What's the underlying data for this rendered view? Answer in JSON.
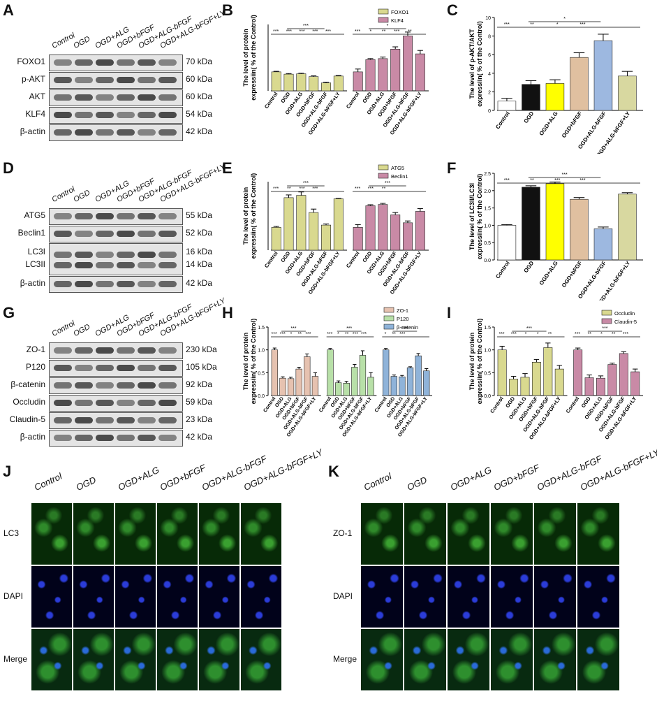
{
  "panels": {
    "A": "A",
    "B": "B",
    "C": "C",
    "D": "D",
    "E": "E",
    "F": "F",
    "G": "G",
    "H": "H",
    "I": "I",
    "J": "J",
    "K": "K"
  },
  "lanes": [
    "Control",
    "OGD",
    "OGD+ALG",
    "OGD+bFGF",
    "OGD+ALG-bFGF",
    "OGD+ALG-bFGF+LY"
  ],
  "blots": {
    "A": [
      {
        "name": "FOXO1",
        "kda": "70 kDa"
      },
      {
        "name": "p-AKT",
        "kda": "60 kDa"
      },
      {
        "name": "AKT",
        "kda": "60 kDa"
      },
      {
        "name": "KLF4",
        "kda": "54 kDa"
      },
      {
        "name": "β-actin",
        "kda": "42 kDa"
      }
    ],
    "D": [
      {
        "name": "ATG5",
        "kda": "55 kDa"
      },
      {
        "name": "Beclin1",
        "kda": "52 kDa"
      },
      {
        "name": "LC3I",
        "kda": "16 kDa"
      },
      {
        "name": "LC3II",
        "kda": "14 kDa"
      },
      {
        "name": "β-actin",
        "kda": "42 kDa"
      }
    ],
    "G": [
      {
        "name": "ZO-1",
        "kda": "230 kDa"
      },
      {
        "name": "P120",
        "kda": "105 kDa"
      },
      {
        "name": "β-catenin",
        "kda": "92 kDa"
      },
      {
        "name": "Occludin",
        "kda": "59 kDa"
      },
      {
        "name": "Claudin-5",
        "kda": "23 kDa"
      },
      {
        "name": "β-actin",
        "kda": "42 kDa"
      }
    ]
  },
  "colors": {
    "olive": "#d9d98f",
    "pink": "#c98aa6",
    "peach": "#e6c2b0",
    "green": "#b8e0a8",
    "blue": "#8fb3d9",
    "black": "#111111",
    "yellow": "#ffff00",
    "tan": "#e0c0a0",
    "lightblue": "#9db8e0",
    "khaki": "#d8d8a0"
  },
  "chart_data": [
    {
      "panel": "B",
      "type": "bar",
      "ylabel": "The level of protein expressiin( % of the Control)",
      "categories": [
        "Control",
        "OGD",
        "OGD+ALG",
        "OGD+bFGF",
        "OGD+ALG-bFGF",
        "OGD+ALG-bFGF+LY"
      ],
      "ylim": [
        0,
        3.5
      ],
      "series": [
        {
          "name": "FOXO1",
          "values": [
            1.0,
            0.88,
            0.9,
            0.75,
            0.42,
            0.78
          ],
          "errors": [
            0.03,
            0.03,
            0.03,
            0.04,
            0.04,
            0.03
          ]
        },
        {
          "name": "KLF4",
          "values": [
            1.0,
            1.65,
            1.7,
            2.2,
            2.9,
            1.95
          ],
          "errors": [
            0.15,
            0.05,
            0.08,
            0.12,
            0.2,
            0.18
          ]
        }
      ],
      "sig": [
        "***",
        "***",
        "***",
        "***",
        "***",
        "***",
        "*",
        "***",
        "*",
        "**",
        "***",
        "**"
      ]
    },
    {
      "panel": "C",
      "type": "bar",
      "ylabel": "The level of p-AKT/AKT expressiin( % of the Control)",
      "categories": [
        "Control",
        "OGD",
        "OGD+ALG",
        "OGD+bFGF",
        "OGD+ALG-bFGF",
        "OGD+ALG-bFGF+LY"
      ],
      "ylim": [
        0,
        10
      ],
      "yticks": [
        0,
        2,
        4,
        6,
        8,
        10
      ],
      "values": [
        1.0,
        2.8,
        2.9,
        5.7,
        7.5,
        3.7
      ],
      "errors": [
        0.3,
        0.4,
        0.4,
        0.5,
        0.7,
        0.5
      ],
      "sig": [
        "*",
        "***",
        "**",
        "*",
        "***"
      ]
    },
    {
      "panel": "E",
      "type": "bar",
      "ylabel": "The level of protein expressiin( % of the Control)",
      "categories": [
        "Control",
        "OGD",
        "OGD+ALG",
        "OGD+bFGF",
        "OGD+ALG-bFGF",
        "OGD+ALG-bFGF+LY"
      ],
      "ylim": [
        0,
        3.0
      ],
      "series": [
        {
          "name": "ATG5",
          "values": [
            1.0,
            2.3,
            2.4,
            1.65,
            1.1,
            2.25
          ],
          "errors": [
            0.04,
            0.12,
            0.15,
            0.15,
            0.05,
            0.02
          ]
        },
        {
          "name": "Beclin1",
          "values": [
            1.0,
            1.95,
            2.0,
            1.55,
            1.2,
            1.7
          ],
          "errors": [
            0.12,
            0.04,
            0.05,
            0.1,
            0.08,
            0.12
          ]
        }
      ],
      "sig": [
        "***",
        "***",
        "**",
        "***",
        "***",
        "***",
        "***",
        "***",
        "**"
      ]
    },
    {
      "panel": "F",
      "type": "bar",
      "ylabel": "The level of LC3II/LC3I expressiin( % of the Control)",
      "categories": [
        "Control",
        "OGD",
        "OGD+ALG",
        "OGD+bFGF",
        "OGD+ALG-bFGF",
        "OGD+ALG-bFGF+LY"
      ],
      "ylim": [
        0,
        2.5
      ],
      "yticks": [
        0,
        0.5,
        1.0,
        1.5,
        2.0,
        2.5
      ],
      "values": [
        1.0,
        2.1,
        2.2,
        1.75,
        0.9,
        1.9
      ],
      "errors": [
        0.02,
        0.04,
        0.05,
        0.05,
        0.05,
        0.04
      ],
      "sig": [
        "***",
        "***",
        "**",
        "***",
        "***"
      ]
    },
    {
      "panel": "H",
      "type": "bar",
      "ylabel": "The level of protein expressiin( % of the Control)",
      "categories": [
        "Control",
        "OGD",
        "OGD+ALG",
        "OGD+bFGF",
        "OGD+ALG-bFGF",
        "OGD+ALG-bFGF+LY"
      ],
      "ylim": [
        0,
        1.5
      ],
      "yticks": [
        0.0,
        0.5,
        1.0,
        1.5
      ],
      "series": [
        {
          "name": "ZO-1",
          "values": [
            1.0,
            0.38,
            0.37,
            0.58,
            0.85,
            0.42
          ],
          "errors": [
            0.04,
            0.03,
            0.03,
            0.04,
            0.06,
            0.08
          ]
        },
        {
          "name": "P120",
          "values": [
            1.0,
            0.28,
            0.27,
            0.62,
            0.88,
            0.4
          ],
          "errors": [
            0.03,
            0.04,
            0.04,
            0.06,
            0.1,
            0.1
          ]
        },
        {
          "name": "β-catenin",
          "values": [
            1.0,
            0.42,
            0.41,
            0.61,
            0.87,
            0.54
          ],
          "errors": [
            0.03,
            0.03,
            0.03,
            0.02,
            0.05,
            0.05
          ]
        }
      ],
      "sig": [
        "***",
        "***",
        "***",
        "*",
        "**",
        "***",
        "***",
        "***",
        "*",
        "**",
        "***",
        "***",
        "***",
        "*",
        "**",
        "***"
      ]
    },
    {
      "panel": "I",
      "type": "bar",
      "ylabel": "The level of protein expressiin( % of the Control)",
      "categories": [
        "Control",
        "OGD",
        "OGD+ALG",
        "OGD+bFGF",
        "OGD+ALG-bFGF",
        "OGD+ALG-bFGF+LY"
      ],
      "ylim": [
        0,
        1.5
      ],
      "yticks": [
        0.0,
        0.5,
        1.0,
        1.5
      ],
      "series": [
        {
          "name": "Occludin",
          "values": [
            1.0,
            0.36,
            0.4,
            0.73,
            1.05,
            0.58
          ],
          "errors": [
            0.08,
            0.06,
            0.08,
            0.06,
            0.1,
            0.08
          ]
        },
        {
          "name": "Claudin-5",
          "values": [
            1.0,
            0.39,
            0.38,
            0.68,
            0.92,
            0.52
          ],
          "errors": [
            0.04,
            0.06,
            0.05,
            0.03,
            0.04,
            0.06
          ]
        }
      ],
      "sig": [
        "***",
        "***",
        "***",
        "*",
        "*",
        "**",
        "***",
        "***",
        "**",
        "*",
        "**",
        "***"
      ]
    }
  ],
  "micro": {
    "columns": [
      "Control",
      "OGD",
      "OGD+ALG",
      "OGD+bFGF",
      "OGD+ALG-bFGF",
      "OGD+ALG-bFGF+LY"
    ],
    "J_rows": [
      "LC3",
      "DAPI",
      "Merge"
    ],
    "K_rows": [
      "ZO-1",
      "DAPI",
      "Merge"
    ]
  }
}
